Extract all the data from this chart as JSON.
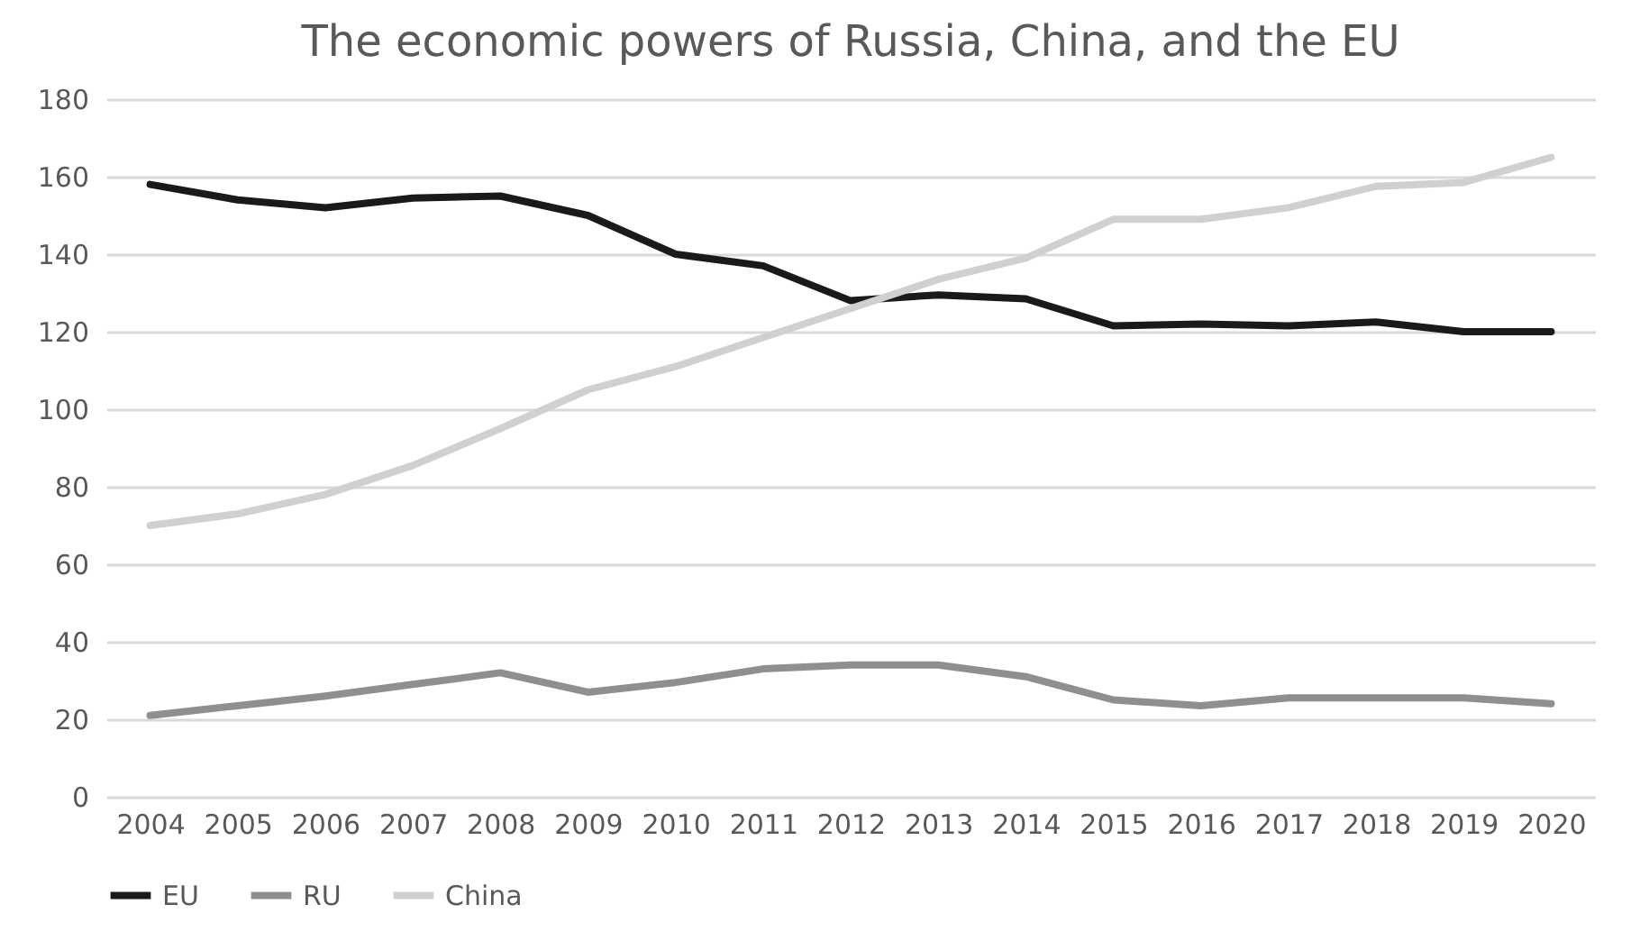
{
  "chart_data": {
    "type": "line",
    "title": "The economic powers of Russia, China, and the EU",
    "categories": [
      "2004",
      "2005",
      "2006",
      "2007",
      "2008",
      "2009",
      "2010",
      "2011",
      "2012",
      "2013",
      "2014",
      "2015",
      "2016",
      "2017",
      "2018",
      "2019",
      "2020"
    ],
    "series": [
      {
        "name": "EU",
        "color": "#1a1a1a",
        "values": [
          158,
          154,
          152,
          154.5,
          155,
          150,
          140,
          137,
          128,
          129.5,
          128.5,
          121.5,
          122,
          121.5,
          122.5,
          120,
          120
        ]
      },
      {
        "name": "RU",
        "color": "#8f8f91",
        "values": [
          21,
          23.5,
          26,
          29,
          32,
          27,
          29.5,
          33,
          34,
          34,
          31,
          25,
          23.5,
          25.5,
          25.5,
          25.5,
          24
        ]
      },
      {
        "name": "China",
        "color": "#d0d0d0",
        "values": [
          70,
          73,
          78,
          85.5,
          95,
          105,
          111,
          118.5,
          126,
          133.5,
          139,
          149,
          149,
          152,
          157.5,
          158.5,
          165
        ]
      }
    ],
    "ylim": [
      0,
      180
    ],
    "yticks": [
      0,
      20,
      40,
      60,
      80,
      100,
      120,
      140,
      160,
      180
    ],
    "grid": "y",
    "legend": "bottom",
    "marker": "none",
    "line_style": "solid"
  }
}
